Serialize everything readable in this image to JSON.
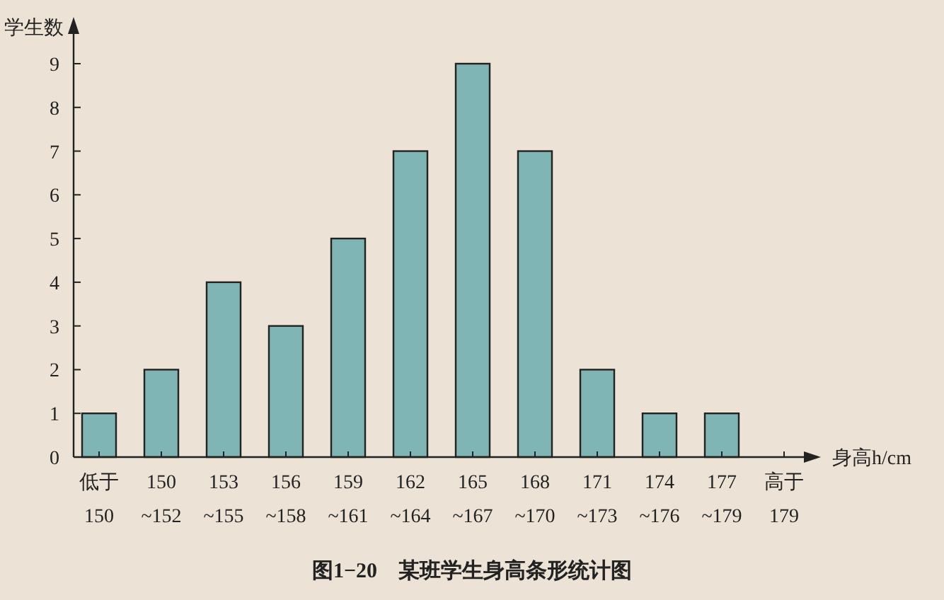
{
  "chart_data": {
    "type": "bar",
    "title": "图1−20　某班学生身高条形统计图",
    "ylabel": "学生数",
    "xlabel": "身高h/cm",
    "categories": [
      "低于\n150",
      "150\n~152",
      "153\n~155",
      "156\n~158",
      "159\n~161",
      "162\n~164",
      "165\n~167",
      "168\n~170",
      "171\n~173",
      "174\n~176",
      "177\n~179",
      "高于\n179"
    ],
    "values": [
      1,
      2,
      4,
      3,
      5,
      7,
      9,
      7,
      2,
      1,
      1,
      0
    ],
    "color": "#7fb5b5",
    "ylim": [
      0,
      9
    ],
    "yticks": [
      0,
      1,
      2,
      3,
      4,
      5,
      6,
      7,
      8,
      9
    ],
    "grid": false
  }
}
